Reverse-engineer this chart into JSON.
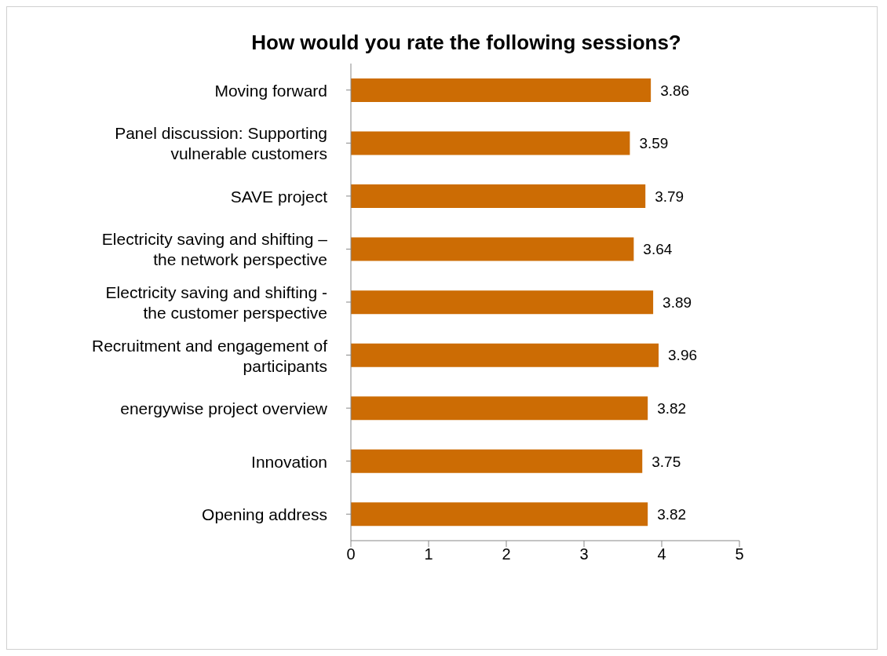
{
  "chart_data": {
    "type": "bar",
    "orientation": "horizontal",
    "title": "How would you rate the following sessions?",
    "categories": [
      "Moving forward",
      "Panel discussion: Supporting vulnerable customers",
      "SAVE project",
      "Electricity saving and shifting – the network perspective",
      "Electricity saving and shifting - the customer perspective",
      "Recruitment and engagement of participants",
      "energywise project overview",
      "Innovation",
      "Opening address"
    ],
    "values": [
      3.86,
      3.59,
      3.79,
      3.64,
      3.89,
      3.96,
      3.82,
      3.75,
      3.82
    ],
    "color": "#cc6c04",
    "xlim": [
      0,
      5
    ],
    "xticks": [
      0,
      1,
      2,
      3,
      4,
      5
    ],
    "data_labels": true
  }
}
